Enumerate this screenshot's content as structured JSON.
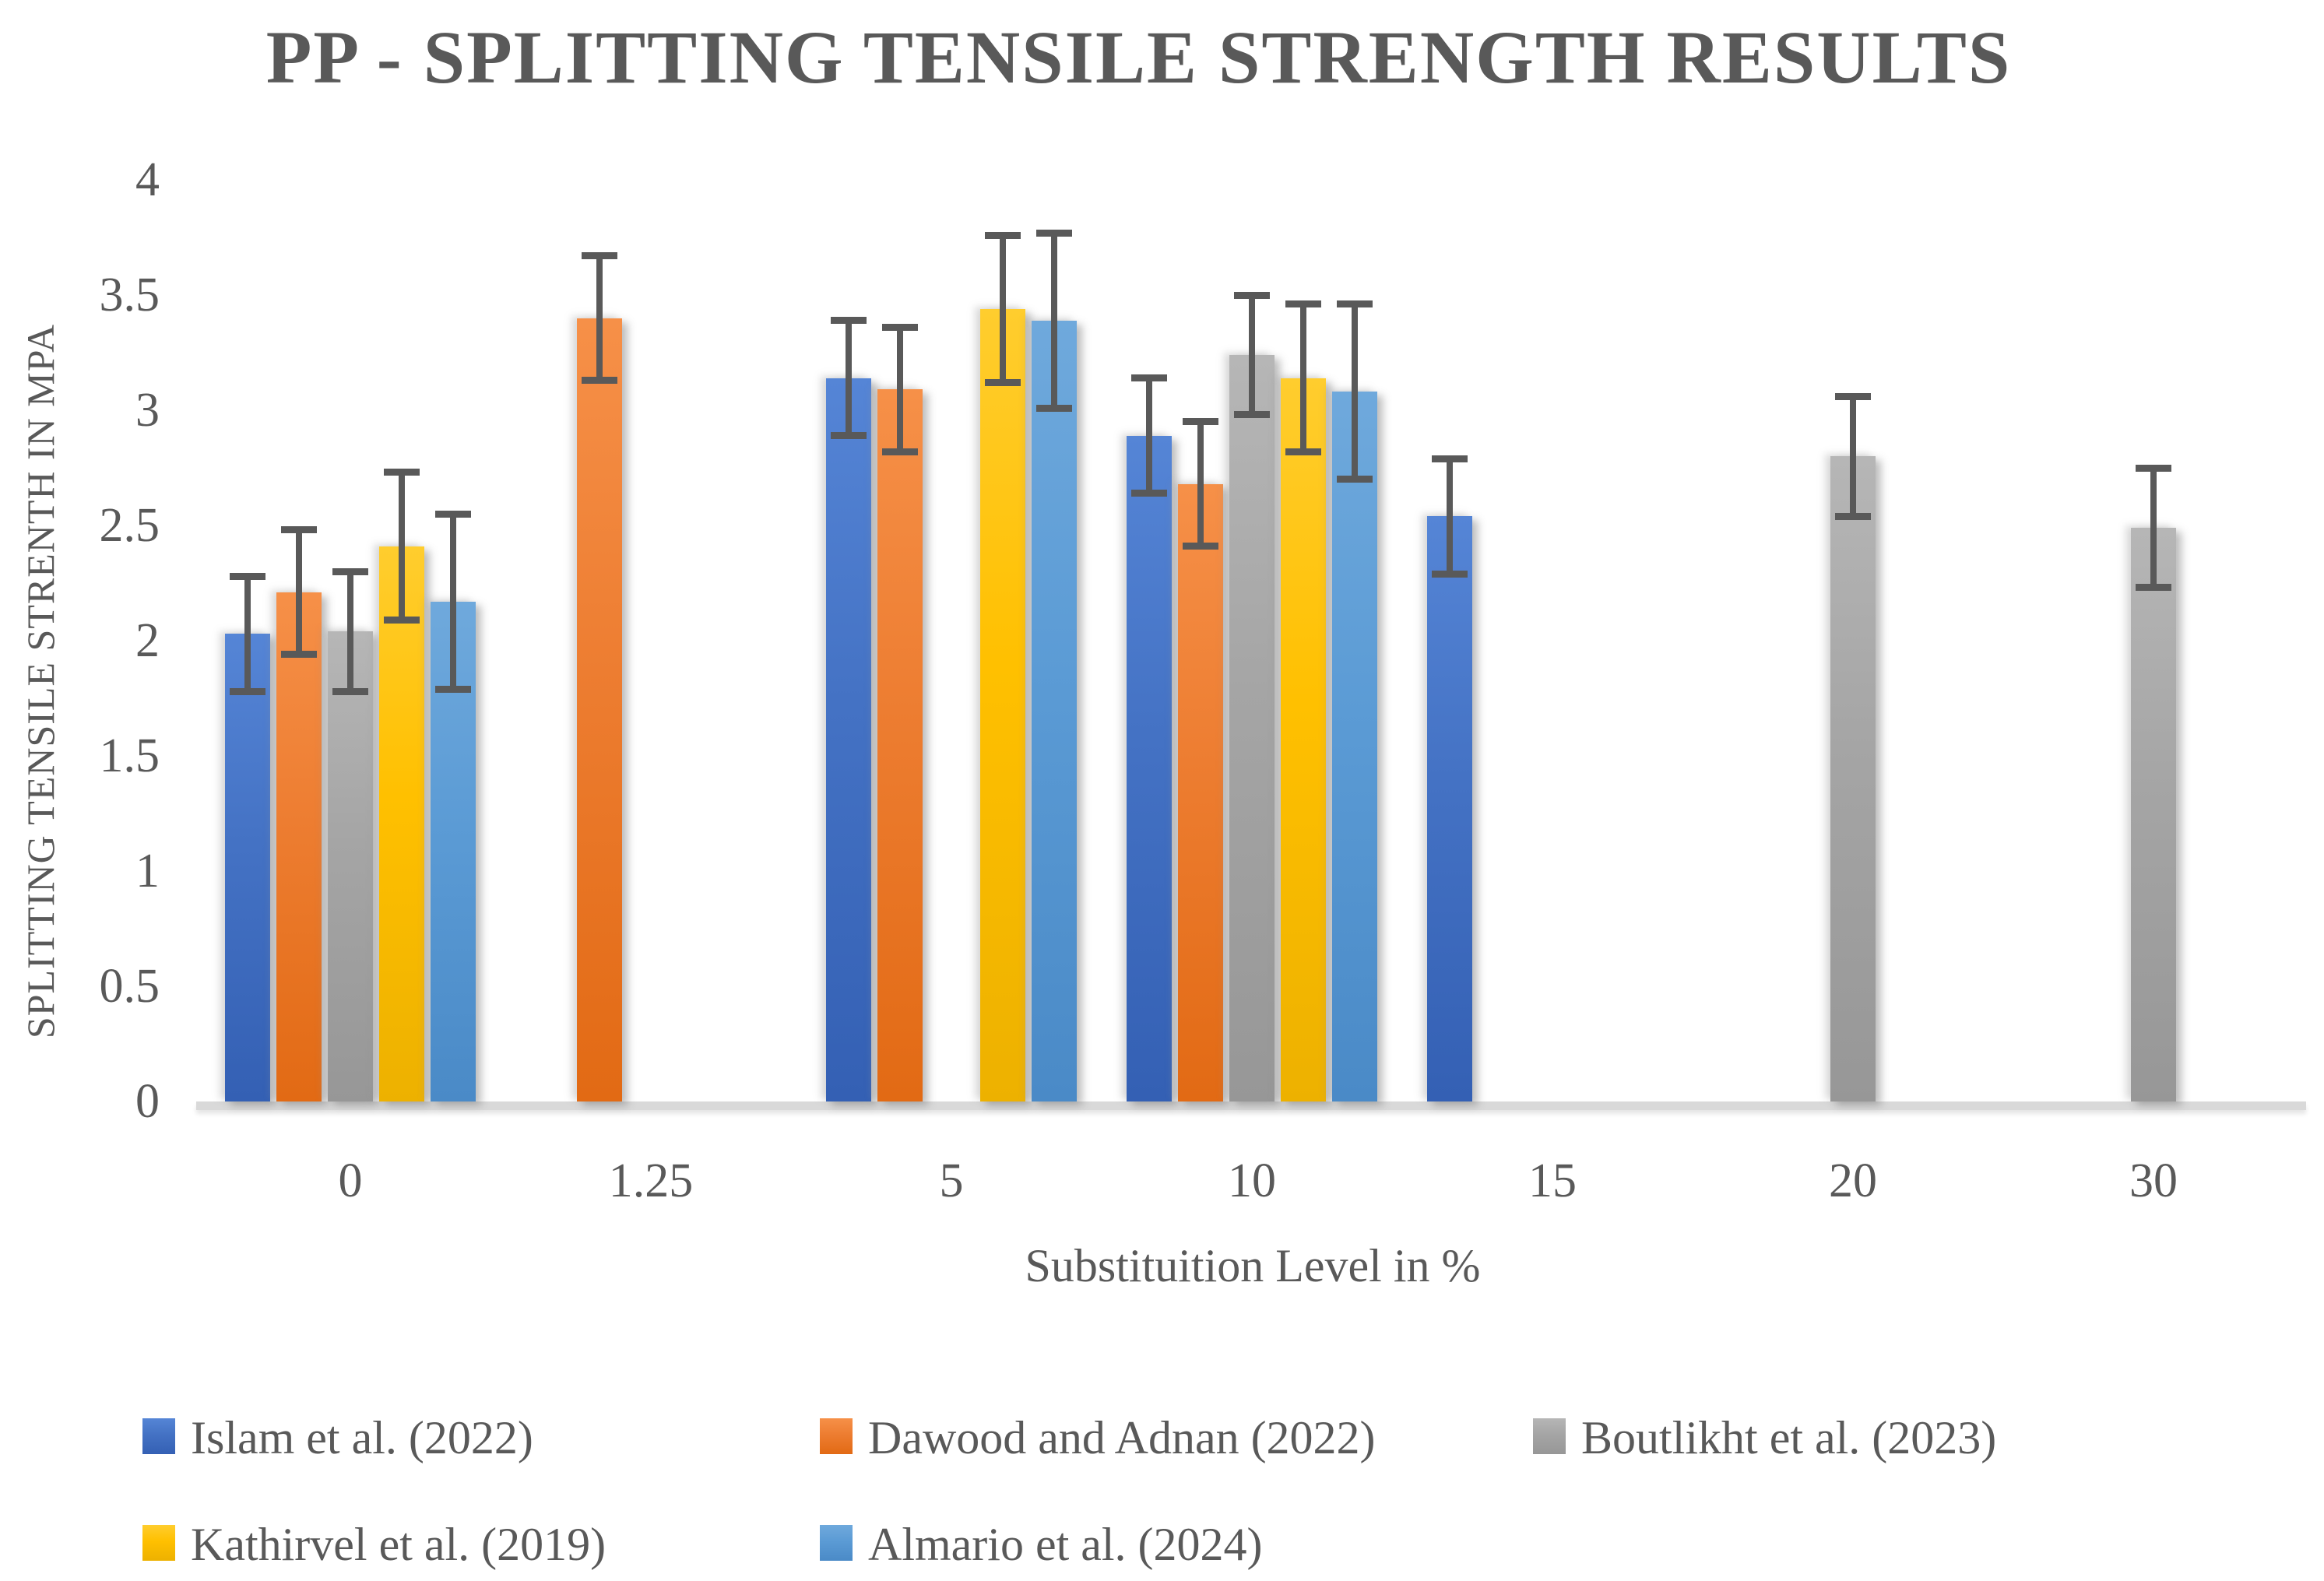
{
  "page": {
    "background": "#ffffff",
    "text_color": "#595959"
  },
  "chart_data": {
    "type": "bar",
    "title": "PP - SPLITTING TENSILE STRENGTH RESULTS",
    "xlabel": "Substituition Level in %",
    "ylabel": "SPLITTING TENSILE STRENTH IN MPA",
    "categories": [
      "0",
      "1.25",
      "5",
      "10",
      "15",
      "20",
      "30"
    ],
    "y_ticks": [
      "0",
      "0.5",
      "1",
      "1.5",
      "2",
      "2.5",
      "3",
      "3.5",
      "4"
    ],
    "ylim": [
      0,
      4
    ],
    "y_tick_step": 0.5,
    "grid": false,
    "legend_position": "bottom",
    "error_bar_color": "#595959",
    "series": [
      {
        "name": "Islam et al. (2022)",
        "color": "#4472C4",
        "color_light": "#5585D6",
        "color_dark": "#3460B4",
        "error": 0.25,
        "values": [
          2.03,
          null,
          3.14,
          2.89,
          2.54,
          null,
          null
        ]
      },
      {
        "name": "Dawood and Adnan (2022)",
        "color": "#ED7D31",
        "color_light": "#F69048",
        "color_dark": "#E26A14",
        "error": 0.27,
        "values": [
          2.21,
          3.4,
          3.09,
          2.68,
          null,
          null,
          null
        ]
      },
      {
        "name": "Boutlikht et al. (2023)",
        "color": "#A5A5A5",
        "color_light": "#B6B6B6",
        "color_dark": "#979797",
        "error": 0.26,
        "values": [
          2.04,
          null,
          null,
          3.24,
          null,
          2.8,
          2.49
        ]
      },
      {
        "name": "Kathirvel et al. (2019)",
        "color": "#FFC000",
        "color_light": "#FFCD2E",
        "color_dark": "#EDB100",
        "error": 0.32,
        "values": [
          2.41,
          null,
          3.44,
          3.14,
          null,
          null,
          null
        ]
      },
      {
        "name": "Almario et al. (2024)",
        "color": "#5B9BD5",
        "color_light": "#6FA9DC",
        "color_dark": "#4A8AC7",
        "error": 0.38,
        "values": [
          2.17,
          null,
          3.39,
          3.08,
          null,
          null,
          null
        ]
      }
    ]
  }
}
